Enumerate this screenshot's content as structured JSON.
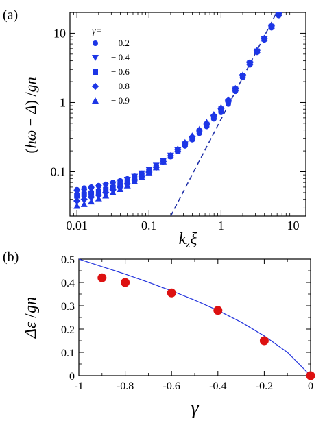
{
  "chart_data": [
    {
      "panel_label": "(a)",
      "type": "scatter",
      "xscale": "log",
      "yscale": "log",
      "xlim": [
        0.008,
        15
      ],
      "ylim": [
        0.023,
        20
      ],
      "xticks": [
        0.01,
        0.1,
        1,
        10
      ],
      "xtick_labels": [
        "0.01",
        "0.1",
        "1",
        "10"
      ],
      "yticks": [
        0.1,
        1,
        10
      ],
      "ytick_labels": [
        "0.1",
        "1",
        "10"
      ],
      "xlabel": "k_zξ",
      "ylabel": "(ħω − Δ) /gn",
      "legend_title": "γ=",
      "legend_position": "top-left",
      "marker_color": "#1d36e6",
      "series": [
        {
          "name": "− 0.2",
          "marker": "circle",
          "x": [
            0.01,
            0.0126,
            0.0158,
            0.02,
            0.0251,
            0.0316,
            0.0398,
            0.0501,
            0.0631,
            0.0794,
            0.1,
            0.126,
            0.158,
            0.2,
            0.251,
            0.316,
            0.398,
            0.501,
            0.631,
            0.794,
            1.0,
            1.26,
            1.58,
            2.0,
            2.51,
            3.16,
            3.98,
            5.01,
            6.31
          ],
          "y": [
            0.055,
            0.058,
            0.06,
            0.063,
            0.066,
            0.07,
            0.074,
            0.079,
            0.086,
            0.095,
            0.107,
            0.122,
            0.142,
            0.165,
            0.196,
            0.236,
            0.29,
            0.36,
            0.45,
            0.58,
            0.72,
            0.95,
            1.45,
            2.3,
            3.5,
            5.3,
            8.0,
            12.0,
            18.0
          ]
        },
        {
          "name": "− 0.4",
          "marker": "triangle-down",
          "x": [
            0.01,
            0.0126,
            0.0158,
            0.02,
            0.0251,
            0.0316,
            0.0398,
            0.0501,
            0.0631,
            0.0794,
            0.1,
            0.126,
            0.158,
            0.2,
            0.251,
            0.316,
            0.398,
            0.501,
            0.631,
            0.794,
            1.0,
            1.26,
            1.58,
            2.0,
            2.51,
            3.16,
            3.98,
            5.01,
            6.31
          ],
          "y": [
            0.05,
            0.052,
            0.055,
            0.058,
            0.062,
            0.066,
            0.071,
            0.077,
            0.085,
            0.095,
            0.108,
            0.123,
            0.145,
            0.172,
            0.205,
            0.25,
            0.3,
            0.37,
            0.46,
            0.6,
            0.76,
            1.0,
            1.5,
            2.35,
            3.6,
            5.4,
            8.2,
            12.2,
            18.5
          ]
        },
        {
          "name": "− 0.6",
          "marker": "square",
          "x": [
            0.01,
            0.0126,
            0.0158,
            0.02,
            0.0251,
            0.0316,
            0.0398,
            0.0501,
            0.0631,
            0.0794,
            0.1,
            0.126,
            0.158,
            0.2,
            0.251,
            0.316,
            0.398,
            0.501,
            0.631,
            0.794,
            1.0,
            1.26,
            1.58,
            2.0,
            2.51,
            3.16,
            3.98,
            5.01,
            6.31
          ],
          "y": [
            0.045,
            0.047,
            0.049,
            0.052,
            0.055,
            0.059,
            0.064,
            0.07,
            0.078,
            0.088,
            0.1,
            0.116,
            0.14,
            0.168,
            0.202,
            0.248,
            0.3,
            0.38,
            0.48,
            0.62,
            0.8,
            1.05,
            1.55,
            2.4,
            3.7,
            5.5,
            8.3,
            12.5,
            19.0
          ]
        },
        {
          "name": "− 0.8",
          "marker": "diamond",
          "x": [
            0.01,
            0.0126,
            0.0158,
            0.02,
            0.0251,
            0.0316,
            0.0398,
            0.0501,
            0.0631,
            0.0794,
            0.1,
            0.126,
            0.158,
            0.2,
            0.251,
            0.316,
            0.398,
            0.501,
            0.631,
            0.794,
            1.0,
            1.26,
            1.58,
            2.0,
            2.51,
            3.16,
            3.98,
            5.01,
            6.31
          ],
          "y": [
            0.038,
            0.04,
            0.043,
            0.046,
            0.05,
            0.055,
            0.06,
            0.067,
            0.076,
            0.086,
            0.099,
            0.116,
            0.14,
            0.17,
            0.21,
            0.26,
            0.32,
            0.4,
            0.5,
            0.65,
            0.82,
            1.08,
            1.58,
            2.45,
            3.75,
            5.6,
            8.4,
            12.7,
            19.2
          ]
        },
        {
          "name": "− 0.9",
          "marker": "triangle-up",
          "x": [
            0.01,
            0.0126,
            0.0158,
            0.02,
            0.0251,
            0.0316,
            0.0398,
            0.0501,
            0.0631,
            0.0794,
            0.1,
            0.126,
            0.158,
            0.2,
            0.251,
            0.316,
            0.398,
            0.501,
            0.631,
            0.794,
            1.0,
            1.26,
            1.58,
            2.0,
            2.51,
            3.16,
            3.98,
            5.01,
            6.31
          ],
          "y": [
            0.032,
            0.034,
            0.037,
            0.041,
            0.045,
            0.05,
            0.056,
            0.063,
            0.072,
            0.083,
            0.097,
            0.115,
            0.14,
            0.172,
            0.214,
            0.265,
            0.33,
            0.41,
            0.52,
            0.67,
            0.85,
            1.1,
            1.6,
            2.5,
            3.8,
            5.7,
            8.5,
            12.8,
            19.5
          ]
        }
      ],
      "reference_line": {
        "style": "dashed",
        "slope": 2,
        "x": [
          0.2,
          6.5
        ],
        "y": [
          0.023,
          24.1
        ]
      }
    },
    {
      "panel_label": "(b)",
      "type": "scatter",
      "xlim": [
        -1,
        0
      ],
      "ylim": [
        0,
        0.5
      ],
      "xticks": [
        -1,
        -0.8,
        -0.6,
        -0.4,
        -0.2,
        0
      ],
      "xtick_labels": [
        "-1",
        "-0.8",
        "-0.6",
        "-0.4",
        "-0.2",
        "0"
      ],
      "yticks": [
        0,
        0.1,
        0.2,
        0.3,
        0.4,
        0.5
      ],
      "ytick_labels": [
        "0",
        "0.1",
        "0.2",
        "0.3",
        "0.4",
        "0.5"
      ],
      "xlabel": "γ",
      "ylabel": "Δε /gn",
      "points": {
        "x": [
          -0.9,
          -0.8,
          -0.6,
          -0.4,
          -0.2,
          0.0
        ],
        "y": [
          0.42,
          0.4,
          0.355,
          0.28,
          0.15,
          0.0
        ],
        "color": "#dd1111"
      },
      "curve": {
        "color": "#2233dd",
        "x": [
          -1,
          -0.9,
          -0.8,
          -0.7,
          -0.6,
          -0.5,
          -0.4,
          -0.3,
          -0.2,
          -0.1,
          0
        ],
        "y": [
          0.5,
          0.468,
          0.436,
          0.401,
          0.364,
          0.324,
          0.28,
          0.23,
          0.171,
          0.1,
          0.0
        ]
      }
    }
  ]
}
